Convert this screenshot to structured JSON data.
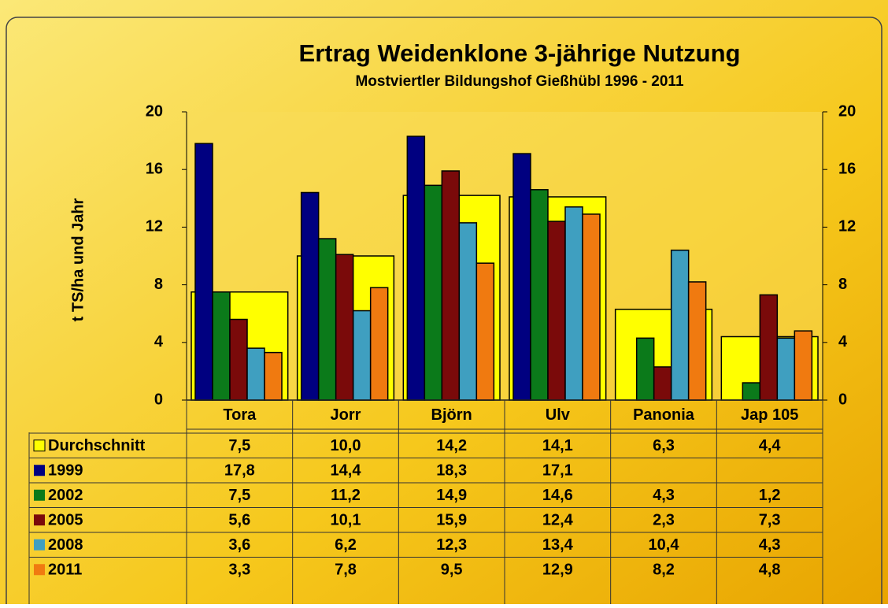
{
  "chart_data": {
    "type": "bar",
    "title": "Ertrag Weidenklone  3-jährige Nutzung",
    "subtitle": "Mostviertler Bildungshof Gießhübl 1996 - 2011",
    "y_axis_label": "t TS/ha und Jahr",
    "categories": [
      "Tora",
      "Jorr",
      "Björn",
      "Ulv",
      "Panonia",
      "Jap 105"
    ],
    "ylim": [
      0,
      20
    ],
    "yticks": [
      0,
      4,
      8,
      12,
      16,
      20
    ],
    "y2lim": [
      0,
      20
    ],
    "y2ticks": [
      0,
      4,
      8,
      12,
      16,
      20
    ],
    "series": [
      {
        "name": "Durchschnitt",
        "color": "#ffff00",
        "values": [
          7.5,
          10.0,
          14.2,
          14.1,
          6.3,
          4.4
        ],
        "value_labels": [
          "7,5",
          "10,0",
          "14,2",
          "14,1",
          "6,3",
          "4,4"
        ]
      },
      {
        "name": "1999",
        "color": "#000080",
        "values": [
          17.8,
          14.4,
          18.3,
          17.1,
          null,
          null
        ],
        "value_labels": [
          "17,8",
          "14,4",
          "18,3",
          "17,1",
          null,
          null
        ]
      },
      {
        "name": "2002",
        "color": "#0b7a1a",
        "values": [
          7.5,
          11.2,
          14.9,
          14.6,
          4.3,
          1.2
        ],
        "value_labels": [
          "7,5",
          "11,2",
          "14,9",
          "14,6",
          "4,3",
          "1,2"
        ]
      },
      {
        "name": "2005",
        "color": "#7a0a0a",
        "values": [
          5.6,
          10.1,
          15.9,
          12.4,
          2.3,
          7.3
        ],
        "value_labels": [
          "5,6",
          "10,1",
          "15,9",
          "12,4",
          "2,3",
          "7,3"
        ]
      },
      {
        "name": "2008",
        "color": "#3f9fc0",
        "values": [
          3.6,
          6.2,
          12.3,
          13.4,
          10.4,
          4.3
        ],
        "value_labels": [
          "3,6",
          "6,2",
          "12,3",
          "13,4",
          "10,4",
          "4,3"
        ]
      },
      {
        "name": "2011",
        "color": "#f07a10",
        "values": [
          3.3,
          7.8,
          9.5,
          12.9,
          8.2,
          4.8
        ],
        "value_labels": [
          "3,3",
          "7,8",
          "9,5",
          "12,9",
          "8,2",
          "4,8"
        ]
      }
    ]
  }
}
